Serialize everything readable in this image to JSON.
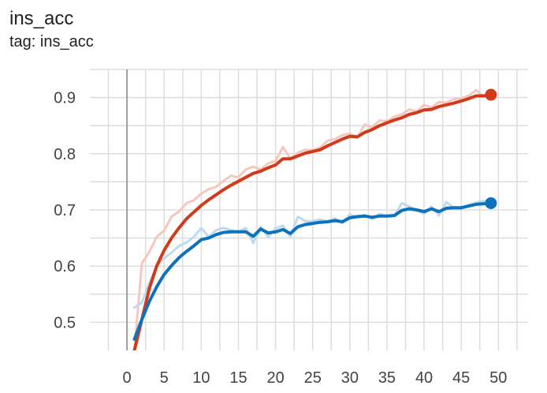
{
  "card": {
    "title": "ins_acc",
    "tag": "tag: ins_acc"
  },
  "chart_data": {
    "type": "line",
    "title": "ins_acc",
    "subtitle": "tag: ins_acc",
    "xlabel": "",
    "ylabel": "",
    "xlim": [
      -5,
      54
    ],
    "ylim": [
      0.45,
      0.95
    ],
    "xticks": [
      0,
      5,
      10,
      15,
      20,
      25,
      30,
      35,
      40,
      45,
      50
    ],
    "yticks": [
      0.5,
      0.6,
      0.7,
      0.8,
      0.9
    ],
    "grid": true,
    "legend": "none",
    "series": [
      {
        "color": "#d13b1c",
        "raw_color": "#f6c7bd",
        "x": [
          1,
          2,
          3,
          4,
          5,
          6,
          7,
          8,
          9,
          10,
          11,
          12,
          13,
          14,
          15,
          16,
          17,
          18,
          19,
          20,
          21,
          22,
          23,
          24,
          25,
          26,
          27,
          28,
          29,
          30,
          31,
          32,
          33,
          34,
          35,
          36,
          37,
          38,
          39,
          40,
          41,
          42,
          43,
          44,
          45,
          46,
          47,
          48,
          49
        ],
        "raw": [
          0.45,
          0.605,
          0.625,
          0.652,
          0.663,
          0.688,
          0.697,
          0.712,
          0.717,
          0.729,
          0.737,
          0.741,
          0.752,
          0.761,
          0.758,
          0.772,
          0.777,
          0.772,
          0.783,
          0.787,
          0.812,
          0.791,
          0.802,
          0.807,
          0.806,
          0.811,
          0.823,
          0.826,
          0.833,
          0.836,
          0.829,
          0.852,
          0.847,
          0.859,
          0.858,
          0.866,
          0.87,
          0.879,
          0.875,
          0.887,
          0.882,
          0.892,
          0.891,
          0.897,
          0.899,
          0.903,
          0.913,
          0.902,
          0.907
        ],
        "values": [
          0.45,
          0.505,
          0.56,
          0.6,
          0.628,
          0.65,
          0.668,
          0.684,
          0.696,
          0.708,
          0.718,
          0.727,
          0.736,
          0.744,
          0.751,
          0.758,
          0.765,
          0.769,
          0.775,
          0.78,
          0.791,
          0.791,
          0.796,
          0.801,
          0.804,
          0.807,
          0.814,
          0.82,
          0.826,
          0.831,
          0.83,
          0.838,
          0.843,
          0.85,
          0.855,
          0.86,
          0.864,
          0.87,
          0.873,
          0.878,
          0.879,
          0.884,
          0.887,
          0.89,
          0.894,
          0.898,
          0.903,
          0.903,
          0.905
        ]
      },
      {
        "color": "#0b72bb",
        "raw_color": "#bfd9ee",
        "x": [
          1,
          2,
          3,
          4,
          5,
          6,
          7,
          8,
          9,
          10,
          11,
          12,
          13,
          14,
          15,
          16,
          17,
          18,
          19,
          20,
          21,
          22,
          23,
          24,
          25,
          26,
          27,
          28,
          29,
          30,
          31,
          32,
          33,
          34,
          35,
          36,
          37,
          38,
          39,
          40,
          41,
          42,
          43,
          44,
          45,
          46,
          47,
          48,
          49
        ],
        "raw": [
          0.526,
          0.535,
          0.57,
          0.6,
          0.614,
          0.624,
          0.636,
          0.642,
          0.652,
          0.668,
          0.652,
          0.664,
          0.668,
          0.664,
          0.661,
          0.668,
          0.641,
          0.67,
          0.652,
          0.667,
          0.672,
          0.652,
          0.688,
          0.68,
          0.68,
          0.683,
          0.679,
          0.685,
          0.677,
          0.692,
          0.687,
          0.691,
          0.684,
          0.693,
          0.688,
          0.69,
          0.712,
          0.706,
          0.7,
          0.693,
          0.706,
          0.69,
          0.714,
          0.703,
          0.702,
          0.708,
          0.713,
          0.716,
          0.712
        ],
        "values": [
          0.47,
          0.505,
          0.537,
          0.563,
          0.585,
          0.601,
          0.615,
          0.626,
          0.636,
          0.647,
          0.65,
          0.656,
          0.66,
          0.661,
          0.661,
          0.661,
          0.653,
          0.666,
          0.659,
          0.661,
          0.665,
          0.658,
          0.67,
          0.674,
          0.676,
          0.678,
          0.679,
          0.681,
          0.679,
          0.686,
          0.688,
          0.689,
          0.687,
          0.689,
          0.689,
          0.69,
          0.699,
          0.702,
          0.7,
          0.697,
          0.702,
          0.697,
          0.703,
          0.704,
          0.704,
          0.707,
          0.71,
          0.711,
          0.712
        ]
      }
    ]
  }
}
